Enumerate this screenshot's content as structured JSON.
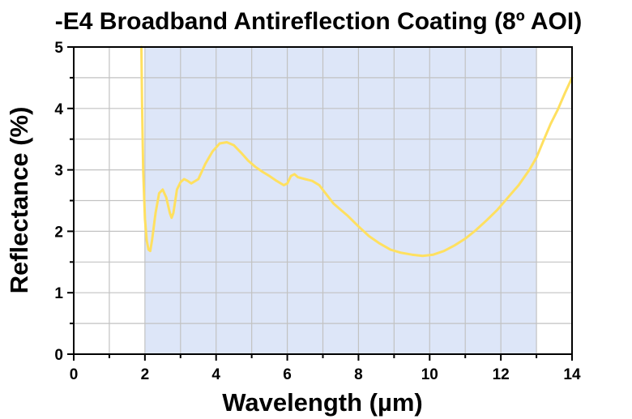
{
  "chart_data": {
    "type": "line",
    "title": "-E4 Broadband Antireflection Coating (8º AOI)",
    "xlabel": "Wavelength (µm)",
    "ylabel": "Reflectance (%)",
    "xlim": [
      0,
      14
    ],
    "ylim": [
      0,
      5
    ],
    "xticks": [
      0,
      2,
      4,
      6,
      8,
      10,
      12,
      14
    ],
    "yticks": [
      0,
      1,
      2,
      3,
      4,
      5
    ],
    "xtick_labels": [
      "0",
      "2",
      "4",
      "6",
      "8",
      "10",
      "12",
      "14"
    ],
    "ytick_labels": [
      "0",
      "1",
      "2",
      "3",
      "4",
      "5"
    ],
    "grid": true,
    "shaded_region": {
      "x": [
        2,
        13
      ],
      "color": "#dde6f8"
    },
    "series": [
      {
        "color": "#ffe060",
        "x": [
          1.9,
          1.92,
          1.95,
          2.0,
          2.05,
          2.1,
          2.15,
          2.2,
          2.3,
          2.4,
          2.5,
          2.6,
          2.7,
          2.75,
          2.8,
          2.9,
          3.0,
          3.1,
          3.2,
          3.3,
          3.5,
          3.7,
          3.9,
          4.1,
          4.3,
          4.5,
          4.7,
          4.9,
          5.1,
          5.3,
          5.5,
          5.7,
          5.9,
          6.0,
          6.1,
          6.2,
          6.3,
          6.5,
          6.7,
          6.9,
          7.1,
          7.3,
          7.5,
          7.7,
          8.0,
          8.3,
          8.6,
          8.9,
          9.2,
          9.5,
          9.8,
          10.1,
          10.4,
          10.7,
          11.0,
          11.3,
          11.6,
          11.9,
          12.2,
          12.5,
          12.8,
          13.0,
          13.2,
          13.4,
          13.6,
          13.8,
          14.0
        ],
        "y": [
          5.0,
          4.1,
          3.0,
          2.2,
          1.85,
          1.7,
          1.68,
          1.85,
          2.3,
          2.62,
          2.68,
          2.55,
          2.3,
          2.22,
          2.3,
          2.68,
          2.8,
          2.85,
          2.82,
          2.78,
          2.85,
          3.1,
          3.3,
          3.43,
          3.45,
          3.4,
          3.28,
          3.15,
          3.05,
          2.97,
          2.9,
          2.82,
          2.75,
          2.78,
          2.9,
          2.93,
          2.88,
          2.85,
          2.82,
          2.75,
          2.6,
          2.45,
          2.35,
          2.25,
          2.08,
          1.92,
          1.8,
          1.7,
          1.65,
          1.62,
          1.6,
          1.62,
          1.68,
          1.77,
          1.88,
          2.02,
          2.18,
          2.35,
          2.55,
          2.75,
          3.0,
          3.2,
          3.48,
          3.75,
          3.98,
          4.25,
          4.5
        ]
      }
    ]
  }
}
